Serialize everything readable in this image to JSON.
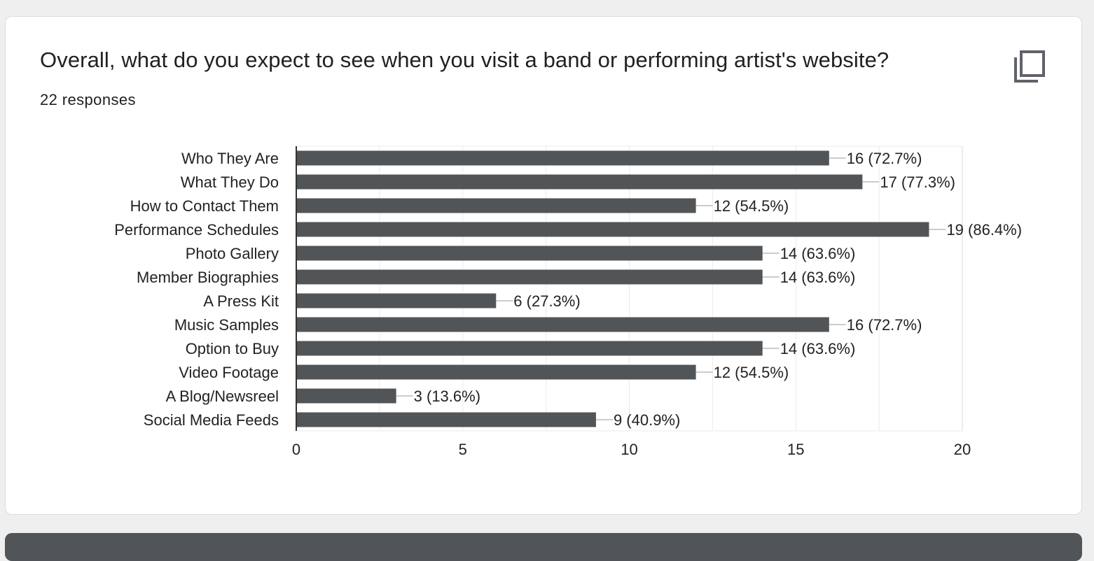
{
  "card": {
    "title": "Overall, what do you expect to see when you visit a band or performing artist's website?",
    "responses": "22 responses",
    "copy_icon": "copy-icon"
  },
  "colors": {
    "bar": "#525557",
    "grid": "#ebebeb",
    "axis": "#333333",
    "text": "#222222",
    "leader": "#999999"
  },
  "chart_data": {
    "type": "bar",
    "orientation": "horizontal",
    "categories": [
      "Who They Are",
      "What They Do",
      "How to Contact Them",
      "Performance Schedules",
      "Photo Gallery",
      "Member Biographies",
      "A Press Kit",
      "Music Samples",
      "Option to Buy",
      "Video Footage",
      "A Blog/Newsreel",
      "Social Media Feeds"
    ],
    "values": [
      16,
      17,
      12,
      19,
      14,
      14,
      6,
      16,
      14,
      12,
      3,
      9
    ],
    "data_labels": [
      "16 (72.7%)",
      "17 (77.3%)",
      "12 (54.5%)",
      "19 (86.4%)",
      "14 (63.6%)",
      "14 (63.6%)",
      "6 (27.3%)",
      "16 (72.7%)",
      "14 (63.6%)",
      "12 (54.5%)",
      "3 (13.6%)",
      "9 (40.9%)"
    ],
    "xlim": [
      0,
      20
    ],
    "xticks": [
      0,
      5,
      10,
      15,
      20
    ],
    "grid": true,
    "legend": "none"
  }
}
